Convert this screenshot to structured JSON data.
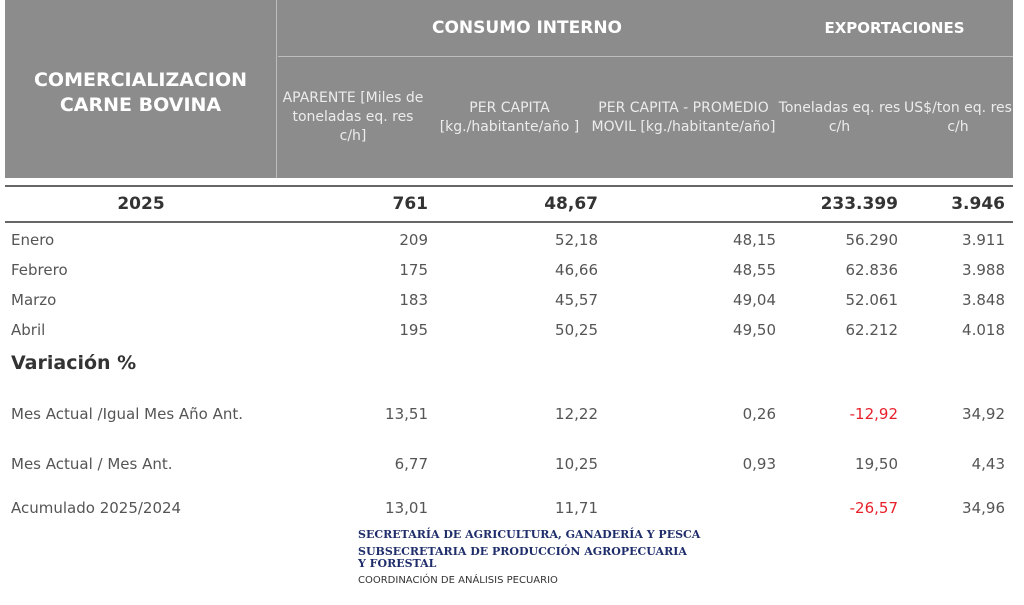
{
  "header": {
    "title": "COMERCIALIZACION CARNE BOVINA",
    "consumo": "CONSUMO INTERNO",
    "exportaciones": "EXPORTACIONES",
    "columns": [
      "APARENTE [Miles de toneladas eq. res c/h]",
      "PER CAPITA [kg./habitante/año ]",
      "PER CAPITA - PROMEDIO MOVIL [kg./habitante/año]",
      "Toneladas eq. res c/h",
      "US$/ton eq. res c/h"
    ]
  },
  "total": {
    "year": "2025",
    "aparente": "761",
    "per_capita": "48,67",
    "promedio": "",
    "toneladas": "233.399",
    "usd": "3.946"
  },
  "months": [
    {
      "label": "Enero",
      "aparente": "209",
      "per_capita": "52,18",
      "promedio": "48,15",
      "toneladas": "56.290",
      "usd": "3.911"
    },
    {
      "label": "Febrero",
      "aparente": "175",
      "per_capita": "46,66",
      "promedio": "48,55",
      "toneladas": "62.836",
      "usd": "3.988"
    },
    {
      "label": "Marzo",
      "aparente": "183",
      "per_capita": "45,57",
      "promedio": "49,04",
      "toneladas": "52.061",
      "usd": "3.848"
    },
    {
      "label": "Abril",
      "aparente": "195",
      "per_capita": "50,25",
      "promedio": "49,50",
      "toneladas": "62.212",
      "usd": "4.018"
    }
  ],
  "variacion": {
    "title": "Variación  %",
    "rows": [
      {
        "label": "Mes Actual /Igual Mes Año Ant.",
        "aparente": "13,51",
        "per_capita": "12,22",
        "promedio": "0,26",
        "toneladas": "-12,92",
        "usd": "34,92"
      },
      {
        "label": "Mes Actual / Mes Ant.",
        "aparente": "6,77",
        "per_capita": "10,25",
        "promedio": "0,93",
        "toneladas": "19,50",
        "usd": "4,43"
      },
      {
        "label": "Acumulado 2025/2024",
        "aparente": "13,01",
        "per_capita": "11,71",
        "promedio": "",
        "toneladas": "-26,57",
        "usd": "34,96"
      }
    ]
  },
  "footer": {
    "line1": "SECRETARÍA DE AGRICULTURA, GANADERÍA Y PESCA",
    "line2": "SUBSECRETARIA DE PRODUCCIÓN AGROPECUARIA Y FORESTAL",
    "line3": "COORDINACIÓN DE ANÁLISIS PECUARIO"
  },
  "colors": {
    "header_bg": "#8c8c8c",
    "negative": "#e8202a",
    "footer": "#1f2e6b"
  }
}
